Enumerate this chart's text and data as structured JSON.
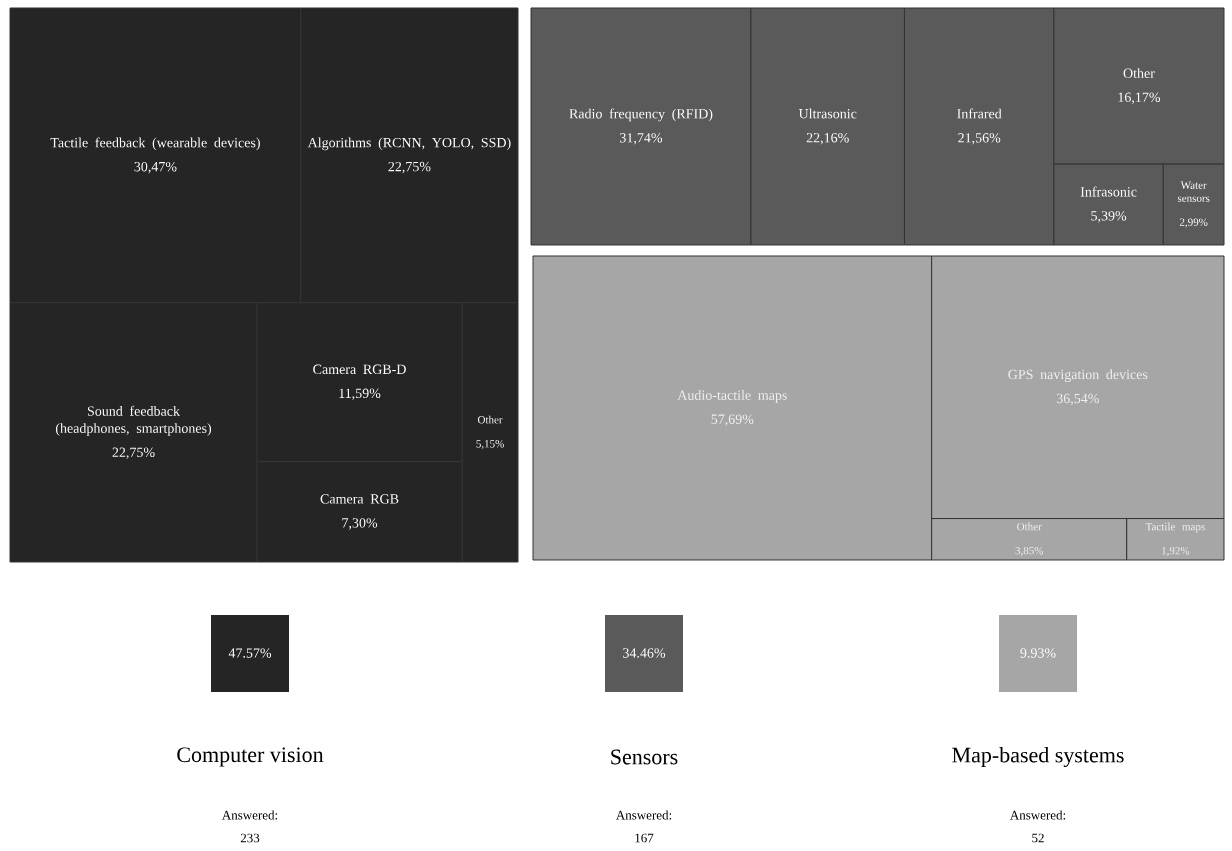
{
  "chart_data": [
    {
      "type": "other",
      "title": "Computer vision",
      "categories": [
        "Tactile feedback (wearable devices)",
        "Algorithms (RCNN, YOLO, SSD)",
        "Sound feedback (headphones, smartphones)",
        "Camera RGB-D",
        "Camera RGB",
        "Other"
      ],
      "values": [
        30.47,
        22.75,
        22.75,
        11.59,
        7.3,
        5.15
      ],
      "value_labels": [
        "30,47%",
        "22,75%",
        "22,75%",
        "11,59%",
        "7,30%",
        "5,15%"
      ],
      "color": "#252525",
      "annotations": [
        "47.57%",
        "Answered:",
        "233"
      ]
    },
    {
      "type": "other",
      "title": "Sensors",
      "categories": [
        "Radio frequency (RFID)",
        "Ultrasonic",
        "Infrared",
        "Other",
        "Infrasonic",
        "Water sensors"
      ],
      "values": [
        31.74,
        22.16,
        21.56,
        16.17,
        5.39,
        2.99
      ],
      "value_labels": [
        "31,74%",
        "22,16%",
        "21,56%",
        "16,17%",
        "5,39%",
        "2,99%"
      ],
      "color": "#5a5a5a",
      "annotations": [
        "34.46%",
        "Answered:",
        "167"
      ]
    },
    {
      "type": "other",
      "title": "Map-based systems",
      "categories": [
        "Audio-tactile maps",
        "GPS navigation devices",
        "Other",
        "Tactile maps"
      ],
      "values": [
        57.69,
        36.54,
        3.85,
        1.92
      ],
      "value_labels": [
        "57,69%",
        "36,54%",
        "3,85%",
        "1,92%"
      ],
      "color": "#a6a6a6",
      "annotations": [
        "9.93%",
        "Answered:",
        "52"
      ]
    }
  ]
}
